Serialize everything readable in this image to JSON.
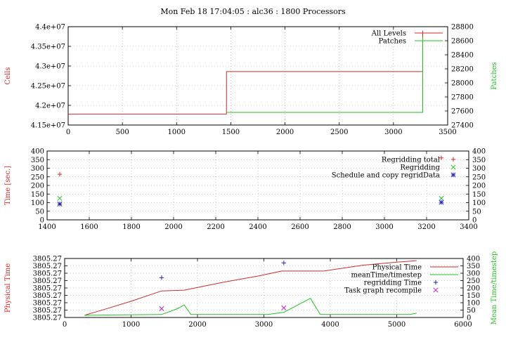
{
  "title": "Mon Feb 18 17:04:05 : alc36 : 1800 Processors",
  "colors": {
    "red": "#d22a2a",
    "green": "#22c322",
    "blue": "#2323b8",
    "magenta": "#c21cc2",
    "grid": "#999999"
  },
  "chart_data": [
    {
      "type": "line",
      "ylabel": "Cells",
      "y2label": "Patches",
      "xlim": [
        0,
        3500
      ],
      "ylim": [
        41500000,
        44000000
      ],
      "y2lim": [
        27400,
        28800
      ],
      "x_ticks": [
        0,
        500,
        1000,
        1500,
        2000,
        2500,
        3000,
        3500
      ],
      "x_tick_labels": [
        "0",
        "500",
        "1000",
        "1500",
        "2000",
        "2500",
        "3000",
        "3500"
      ],
      "y_ticks": [
        41500000,
        42000000,
        42500000,
        43000000,
        43500000,
        44000000
      ],
      "y_tick_labels": [
        "4.15e+07",
        "4.2e+07",
        "4.25e+07",
        "4.3e+07",
        "4.35e+07",
        "4.4e+07"
      ],
      "y2_ticks": [
        27400,
        27600,
        27800,
        28000,
        28200,
        28400,
        28600,
        28800
      ],
      "y2_tick_labels": [
        "27400",
        "27600",
        "27800",
        "28000",
        "28200",
        "28400",
        "28600",
        "28800"
      ],
      "grid": true,
      "legend_position": "top-right",
      "series": [
        {
          "name": "All Levels",
          "axis": "left",
          "color": "#d22a2a",
          "step": true,
          "x": [
            0,
            1460,
            1460,
            3270,
            3270
          ],
          "y": [
            41780000,
            41780000,
            42860000,
            42860000,
            43900000
          ]
        },
        {
          "name": "Patches",
          "axis": "right",
          "color": "#22c322",
          "step": true,
          "x": [
            1460,
            3270,
            3270
          ],
          "y": [
            27580,
            27580,
            28640
          ]
        }
      ]
    },
    {
      "type": "scatter",
      "ylabel": "Time [sec.]",
      "xlim": [
        1400,
        3400
      ],
      "ylim": [
        0,
        400
      ],
      "y2lim": [
        0,
        400
      ],
      "x_ticks": [
        1400,
        1600,
        1800,
        2000,
        2200,
        2400,
        2600,
        2800,
        3000,
        3200,
        3400
      ],
      "x_tick_labels": [
        "1400",
        "1600",
        "1800",
        "2000",
        "2200",
        "2400",
        "2600",
        "2800",
        "3000",
        "3200",
        "3400"
      ],
      "y_ticks": [
        0,
        50,
        100,
        150,
        200,
        250,
        300,
        350,
        400
      ],
      "y_tick_labels": [
        "0",
        "50",
        "100",
        "150",
        "200",
        "250",
        "300",
        "350",
        "400"
      ],
      "y2_ticks": [
        0,
        50,
        100,
        150,
        200,
        250,
        300,
        350,
        400
      ],
      "y2_tick_labels": [
        "0",
        "50",
        "100",
        "150",
        "200",
        "250",
        "300",
        "350",
        "400"
      ],
      "grid": true,
      "legend_position": "top-right",
      "series": [
        {
          "name": "Regridding total",
          "marker": "+",
          "color": "#d22a2a",
          "x": [
            1460,
            3270
          ],
          "y": [
            265,
            360
          ]
        },
        {
          "name": "Regridding",
          "marker": "x",
          "color": "#22c322",
          "x": [
            1460,
            3270
          ],
          "y": [
            125,
            125
          ]
        },
        {
          "name": "Schedule and copy regridData",
          "marker": "*",
          "color": "#2323b8",
          "x": [
            1460,
            3270
          ],
          "y": [
            92,
            102
          ]
        }
      ]
    },
    {
      "type": "line",
      "ylabel": "Physical Time",
      "y2label": "Mean Time/timestep",
      "xlim": [
        0,
        6000
      ],
      "ylim": [
        0,
        8
      ],
      "y2lim": [
        0,
        400
      ],
      "x_ticks": [
        0,
        1000,
        2000,
        3000,
        4000,
        5000,
        6000
      ],
      "x_tick_labels": [
        "0",
        "1000",
        "2000",
        "3000",
        "4000",
        "5000",
        "6000"
      ],
      "y_ticks": [
        0,
        1,
        2,
        3,
        4,
        5,
        6,
        7,
        8
      ],
      "y_tick_labels": [
        "3805.27",
        "3805.27",
        "3805.27",
        "3805.27",
        "3805.27",
        "3805.27",
        "3805.27",
        "3805.27",
        "3805.27"
      ],
      "y2_ticks": [
        0,
        50,
        100,
        150,
        200,
        250,
        300,
        350,
        400
      ],
      "y2_tick_labels": [
        "0",
        "50",
        "100",
        "150",
        "200",
        "250",
        "300",
        "350",
        "400"
      ],
      "grid": true,
      "legend_position": "top-right",
      "series": [
        {
          "name": "Physical Time",
          "axis": "left",
          "color": "#d22a2a",
          "x": [
            300,
            600,
            1000,
            1460,
            1800,
            2400,
            2900,
            3270,
            3900,
            4500,
            5000,
            5300
          ],
          "y": [
            0.3,
            1.1,
            2.2,
            3.6,
            3.7,
            4.8,
            5.6,
            6.3,
            6.3,
            7.1,
            7.5,
            7.7
          ]
        },
        {
          "name": "meanTime/timestep",
          "axis": "right",
          "color": "#22c322",
          "x": [
            300,
            1460,
            1700,
            1800,
            1900,
            3050,
            3300,
            3700,
            3850,
            5200,
            5300
          ],
          "y": [
            15,
            20,
            60,
            85,
            20,
            20,
            35,
            130,
            20,
            20,
            30
          ]
        },
        {
          "name": "regridding Time",
          "axis": "right",
          "marker": "+",
          "color": "#2323b8",
          "x": [
            1460,
            3300
          ],
          "y": [
            270,
            370
          ]
        },
        {
          "name": "Task graph recompile",
          "axis": "right",
          "marker": "x",
          "color": "#c21cc2",
          "x": [
            1460,
            3300
          ],
          "y": [
            60,
            65
          ]
        }
      ]
    }
  ]
}
